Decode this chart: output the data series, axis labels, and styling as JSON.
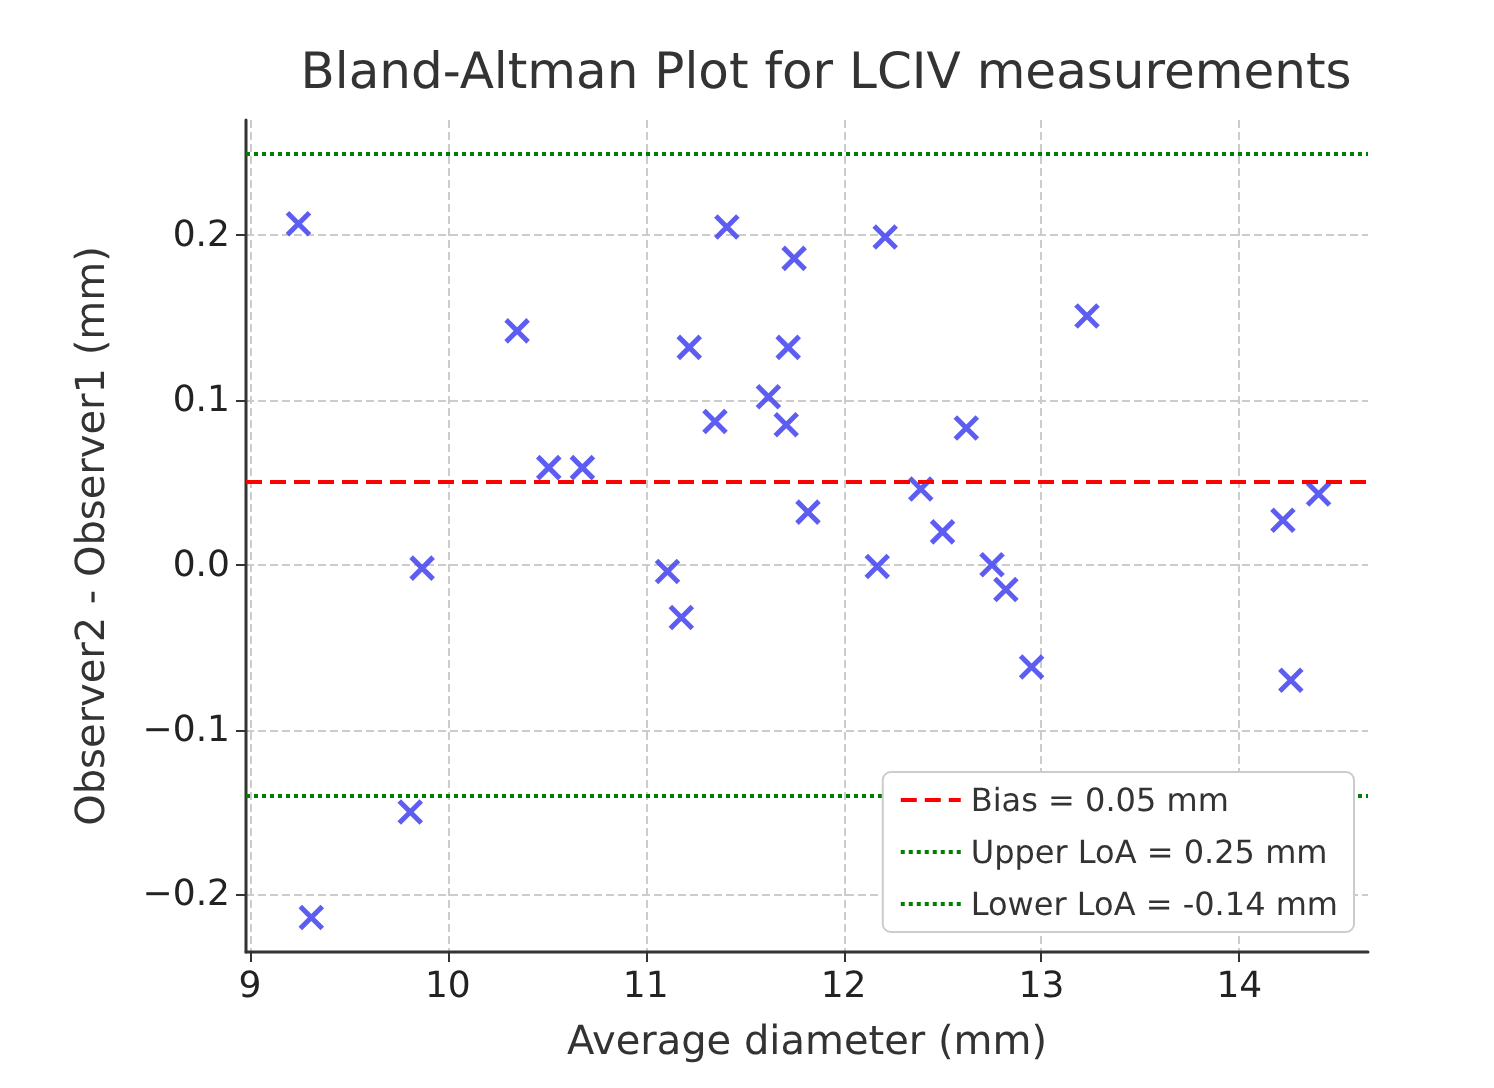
{
  "chart_data": {
    "type": "scatter",
    "title": "Bland-Altman Plot for LCIV measurements",
    "xlabel": "Average diameter (mm)",
    "ylabel": "Observer2 - Observer1 (mm)",
    "x": [
      9.245,
      9.31,
      9.81,
      9.87,
      10.35,
      10.51,
      10.68,
      11.11,
      11.18,
      11.22,
      11.35,
      11.41,
      11.62,
      11.71,
      11.72,
      11.75,
      11.82,
      12.17,
      12.21,
      12.39,
      12.5,
      12.62,
      12.75,
      12.82,
      12.95,
      13.23,
      14.22,
      14.26,
      14.4
    ],
    "series": [
      {
        "color": "#4b4bf0",
        "values": [
          0.207,
          -0.214,
          -0.15,
          -0.002,
          0.142,
          0.059,
          0.059,
          -0.004,
          -0.032,
          0.132,
          0.087,
          0.205,
          0.102,
          0.085,
          0.132,
          0.186,
          0.032,
          -0.001,
          0.199,
          0.046,
          0.02,
          0.083,
          0.0,
          -0.015,
          -0.062,
          0.151,
          0.027,
          -0.07,
          0.043
        ]
      }
    ],
    "marker": "cross",
    "xlim": [
      8.98,
      14.65
    ],
    "xticks": [
      9,
      10,
      11,
      12,
      13,
      14
    ],
    "ylim": [
      -0.235,
      0.27
    ],
    "yticks": [
      {
        "value": -0.2,
        "label": "−0.2"
      },
      {
        "value": -0.1,
        "label": "−0.1"
      },
      {
        "value": 0,
        "label": "0.0"
      },
      {
        "value": 0.1,
        "label": "0.1"
      },
      {
        "value": 0.2,
        "label": "0.2"
      }
    ],
    "ref_lines": [
      {
        "axis": "y",
        "value": 0.05,
        "label": "Bias = 0.05 mm",
        "color": "#ff0000",
        "line_style": "dashed"
      },
      {
        "axis": "y",
        "value": 0.25,
        "label": "Upper LoA = 0.25 mm",
        "color": "#008000",
        "line_style": "dotted"
      },
      {
        "axis": "y",
        "value": -0.14,
        "label": "Lower LoA = -0.14 mm",
        "color": "#008000",
        "line_style": "dotted"
      }
    ],
    "grid": true,
    "legend": "bottom right"
  }
}
